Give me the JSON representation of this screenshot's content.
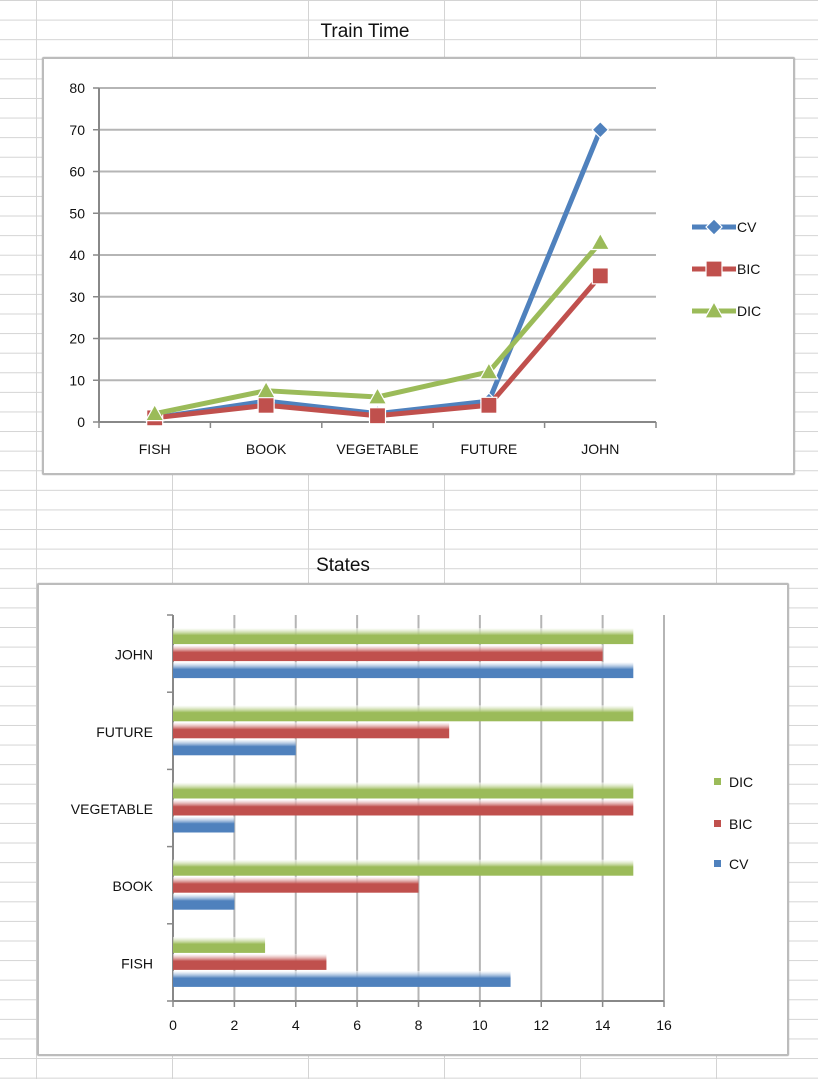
{
  "chart_data": [
    {
      "type": "line",
      "title": "Train Time",
      "categories": [
        "FISH",
        "BOOK",
        "VEGETABLE",
        "FUTURE",
        "JOHN"
      ],
      "ylim": [
        0,
        80
      ],
      "yticks": [
        0,
        10,
        20,
        30,
        40,
        50,
        60,
        70,
        80
      ],
      "grid": true,
      "legend": "right",
      "series": [
        {
          "name": "CV",
          "values": [
            1,
            5,
            2,
            5,
            70
          ],
          "color": "#4f81bd",
          "marker": "diamond"
        },
        {
          "name": "BIC",
          "values": [
            1,
            4,
            1.5,
            4,
            35
          ],
          "color": "#c0504d",
          "marker": "square"
        },
        {
          "name": "DIC",
          "values": [
            2,
            7.5,
            6,
            12,
            43
          ],
          "color": "#9bbb59",
          "marker": "triangle"
        }
      ]
    },
    {
      "type": "bar",
      "orientation": "horizontal",
      "title": "States",
      "categories": [
        "FISH",
        "BOOK",
        "VEGETABLE",
        "FUTURE",
        "JOHN"
      ],
      "xlim": [
        0,
        16
      ],
      "xticks": [
        0,
        2,
        4,
        6,
        8,
        10,
        12,
        14,
        16
      ],
      "grid": true,
      "legend": "right",
      "series": [
        {
          "name": "CV",
          "values": [
            11,
            2,
            2,
            4,
            15
          ],
          "color": "#4f81bd"
        },
        {
          "name": "BIC",
          "values": [
            5,
            8,
            15,
            9,
            14
          ],
          "color": "#c0504d"
        },
        {
          "name": "DIC",
          "values": [
            3,
            15,
            15,
            15,
            15
          ],
          "color": "#9bbb59"
        }
      ],
      "legend_order": [
        "DIC",
        "BIC",
        "CV"
      ]
    }
  ]
}
